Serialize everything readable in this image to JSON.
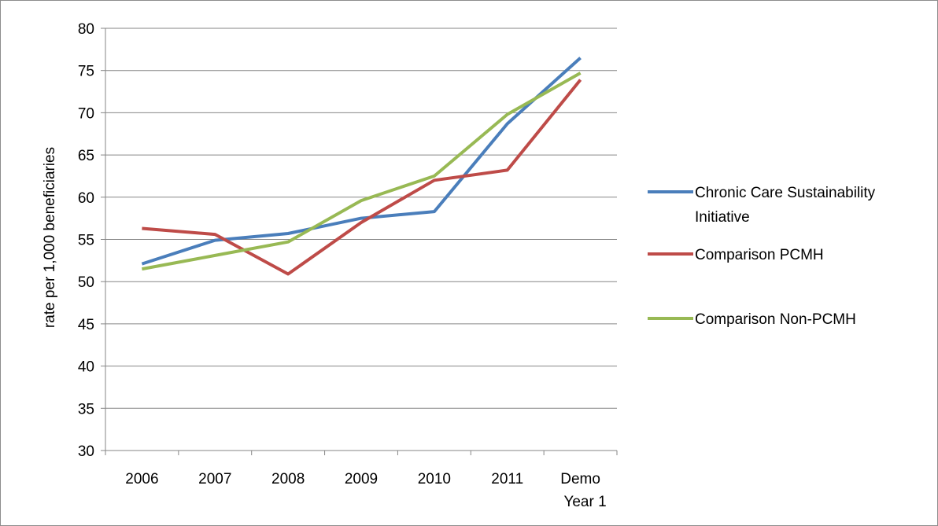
{
  "chart_data": {
    "type": "line",
    "title": "",
    "xlabel": "",
    "ylabel": "rate per 1,000 beneficiaries",
    "ylim": [
      30,
      80
    ],
    "y_ticks": [
      "30",
      "35",
      "40",
      "45",
      "50",
      "55",
      "60",
      "65",
      "70",
      "75",
      "80"
    ],
    "grid": true,
    "legend_position": "right",
    "categories": [
      {
        "line1": "2006",
        "line2": ""
      },
      {
        "line1": "2007",
        "line2": ""
      },
      {
        "line1": "2008",
        "line2": ""
      },
      {
        "line1": "2009",
        "line2": ""
      },
      {
        "line1": "2010",
        "line2": ""
      },
      {
        "line1": "2011",
        "line2": ""
      },
      {
        "line1": "Demo",
        "line2": "Year 1"
      }
    ],
    "series": [
      {
        "name": "Chronic Care Sustainability Initiative",
        "legend_lines": [
          "Chronic Care Sustainability",
          "Initiative"
        ],
        "color": "#4a7ebb",
        "values": [
          52.1,
          54.9,
          55.7,
          57.5,
          58.3,
          68.7,
          76.5
        ]
      },
      {
        "name": "Comparison PCMH",
        "legend_lines": [
          "Comparison PCMH"
        ],
        "color": "#be4b48",
        "values": [
          56.3,
          55.6,
          50.9,
          57.0,
          62.0,
          63.2,
          73.9
        ]
      },
      {
        "name": "Comparison Non-PCMH",
        "legend_lines": [
          "Comparison Non-PCMH"
        ],
        "color": "#98b954",
        "values": [
          51.5,
          53.1,
          54.7,
          59.6,
          62.5,
          69.8,
          74.7
        ]
      }
    ]
  }
}
